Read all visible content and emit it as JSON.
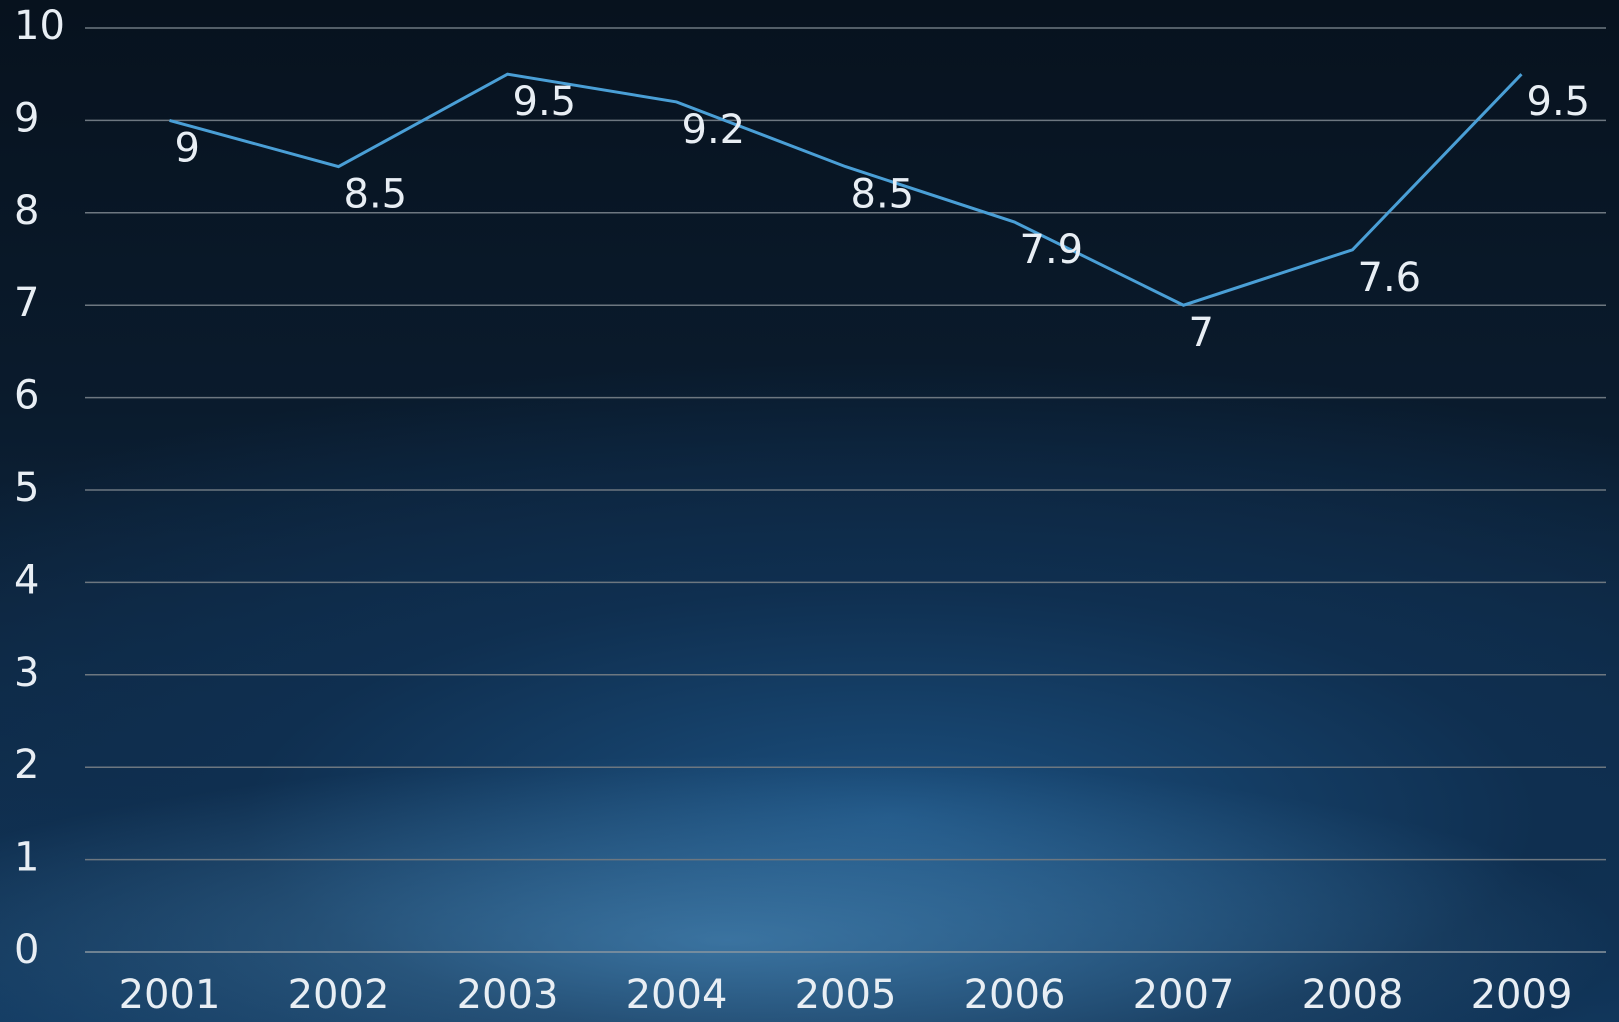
{
  "chart_data": {
    "type": "line",
    "categories": [
      "2001",
      "2002",
      "2003",
      "2004",
      "2005",
      "2006",
      "2007",
      "2008",
      "2009"
    ],
    "series": [
      {
        "color": "#4a9fd6",
        "values": [
          9,
          8.5,
          9.5,
          9.2,
          8.5,
          7.9,
          7,
          7.6,
          9.5
        ]
      }
    ],
    "ylim": [
      0,
      10
    ],
    "yticks": [
      0,
      1,
      2,
      3,
      4,
      5,
      6,
      7,
      8,
      9,
      10
    ],
    "grid": true,
    "data_labels": true
  }
}
